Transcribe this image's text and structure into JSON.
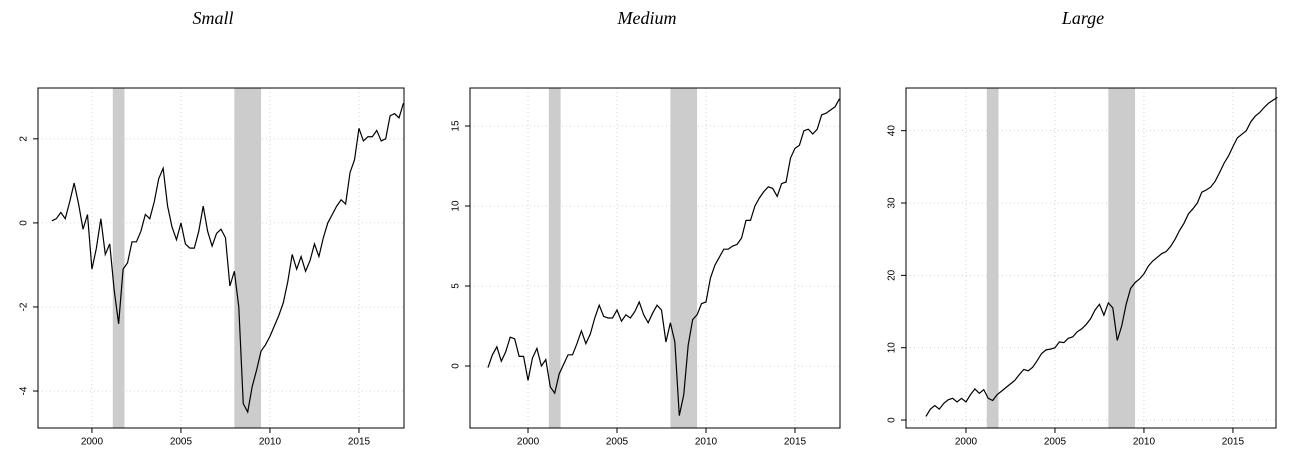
{
  "chart_data": [
    {
      "type": "line",
      "title": "Small",
      "color": "#000000",
      "shade_color": "#cccccc",
      "grid": true,
      "xlim": [
        1996.97,
        2017.53
      ],
      "xticks": [
        2000,
        2005,
        2010,
        2015
      ],
      "ylim": [
        -4.88,
        3.21
      ],
      "yticks": [
        -4,
        -2,
        0,
        2
      ],
      "shaded": [
        [
          2001.17,
          2001.83
        ],
        [
          2008.0,
          2009.5
        ]
      ],
      "x": [
        1997.75,
        1998,
        1998.25,
        1998.5,
        1998.75,
        1999,
        1999.25,
        1999.5,
        1999.75,
        2000,
        2000.25,
        2000.5,
        2000.75,
        2001,
        2001.25,
        2001.5,
        2001.75,
        2002,
        2002.25,
        2002.5,
        2002.75,
        2003,
        2003.25,
        2003.5,
        2003.75,
        2004,
        2004.25,
        2004.5,
        2004.75,
        2005,
        2005.25,
        2005.5,
        2005.75,
        2006,
        2006.25,
        2006.5,
        2006.75,
        2007,
        2007.25,
        2007.5,
        2007.75,
        2008,
        2008.25,
        2008.5,
        2008.75,
        2009,
        2009.25,
        2009.5,
        2009.75,
        2010,
        2010.25,
        2010.5,
        2010.75,
        2011,
        2011.25,
        2011.5,
        2011.75,
        2012,
        2012.25,
        2012.5,
        2012.75,
        2013,
        2013.25,
        2013.5,
        2013.75,
        2014,
        2014.25,
        2014.5,
        2014.75,
        2015,
        2015.25,
        2015.5,
        2015.75,
        2016,
        2016.25,
        2016.5,
        2016.75,
        2017,
        2017.25,
        2017.5
      ],
      "values": [
        0.05,
        0.1,
        0.25,
        0.1,
        0.5,
        0.95,
        0.45,
        -0.15,
        0.2,
        -1.1,
        -0.6,
        0.1,
        -0.75,
        -0.5,
        -1.6,
        -2.4,
        -1.1,
        -0.95,
        -0.45,
        -0.45,
        -0.2,
        0.2,
        0.1,
        0.5,
        1.05,
        1.3,
        0.4,
        -0.1,
        -0.4,
        0.0,
        -0.5,
        -0.6,
        -0.6,
        -0.2,
        0.4,
        -0.2,
        -0.55,
        -0.25,
        -0.15,
        -0.35,
        -1.5,
        -1.15,
        -2.0,
        -4.3,
        -4.5,
        -3.9,
        -3.5,
        -3.05,
        -2.9,
        -2.7,
        -2.45,
        -2.2,
        -1.9,
        -1.4,
        -0.75,
        -1.1,
        -0.8,
        -1.15,
        -0.9,
        -0.5,
        -0.8,
        -0.35,
        0.0,
        0.2,
        0.4,
        0.55,
        0.45,
        1.2,
        1.5,
        2.25,
        1.95,
        2.05,
        2.05,
        2.2,
        1.95,
        2.0,
        2.55,
        2.6,
        2.5,
        2.85
      ]
    },
    {
      "type": "line",
      "title": "Medium",
      "color": "#000000",
      "shade_color": "#cccccc",
      "grid": true,
      "xlim": [
        1996.74,
        2017.53
      ],
      "xticks": [
        2000,
        2005,
        2010,
        2015
      ],
      "ylim": [
        -3.875,
        17.375
      ],
      "yticks": [
        0,
        5,
        10,
        15
      ],
      "shaded": [
        [
          2001.17,
          2001.83
        ],
        [
          2008.0,
          2009.5
        ]
      ],
      "x": [
        1997.75,
        1998,
        1998.25,
        1998.5,
        1998.75,
        1999,
        1999.25,
        1999.5,
        1999.75,
        2000,
        2000.25,
        2000.5,
        2000.75,
        2001,
        2001.25,
        2001.5,
        2001.75,
        2002,
        2002.25,
        2002.5,
        2002.75,
        2003,
        2003.25,
        2003.5,
        2003.75,
        2004,
        2004.25,
        2004.5,
        2004.75,
        2005,
        2005.25,
        2005.5,
        2005.75,
        2006,
        2006.25,
        2006.5,
        2006.75,
        2007,
        2007.25,
        2007.5,
        2007.75,
        2008,
        2008.25,
        2008.5,
        2008.75,
        2009,
        2009.25,
        2009.5,
        2009.75,
        2010,
        2010.25,
        2010.5,
        2010.75,
        2011,
        2011.25,
        2011.5,
        2011.75,
        2012,
        2012.25,
        2012.5,
        2012.75,
        2013,
        2013.25,
        2013.5,
        2013.75,
        2014,
        2014.25,
        2014.5,
        2014.75,
        2015,
        2015.25,
        2015.5,
        2015.75,
        2016,
        2016.25,
        2016.5,
        2016.75,
        2017,
        2017.25,
        2017.5
      ],
      "values": [
        -0.1,
        0.7,
        1.2,
        0.3,
        0.9,
        1.8,
        1.7,
        0.6,
        0.6,
        -0.9,
        0.5,
        1.1,
        0.0,
        0.4,
        -1.3,
        -1.7,
        -0.5,
        0.1,
        0.7,
        0.7,
        1.4,
        2.2,
        1.4,
        2.0,
        3.0,
        3.8,
        3.1,
        3.0,
        3.0,
        3.5,
        2.8,
        3.2,
        3.0,
        3.4,
        4.0,
        3.2,
        2.7,
        3.3,
        3.8,
        3.5,
        1.5,
        2.7,
        1.5,
        -3.1,
        -1.8,
        1.3,
        2.9,
        3.2,
        3.9,
        4.0,
        5.5,
        6.3,
        6.8,
        7.3,
        7.3,
        7.5,
        7.6,
        8.0,
        9.1,
        9.1,
        10.0,
        10.5,
        10.9,
        11.2,
        11.1,
        10.6,
        11.4,
        11.5,
        13.0,
        13.6,
        13.8,
        14.7,
        14.8,
        14.5,
        14.8,
        15.7,
        15.8,
        16.0,
        16.2,
        16.7
      ]
    },
    {
      "type": "line",
      "title": "Large",
      "color": "#000000",
      "shade_color": "#cccccc",
      "grid": true,
      "xlim": [
        1996.63,
        2017.42
      ],
      "xticks": [
        2000,
        2005,
        2010,
        2015
      ],
      "ylim": [
        -1.1,
        45.9
      ],
      "yticks": [
        0,
        10,
        20,
        30,
        40
      ],
      "shaded": [
        [
          2001.17,
          2001.83
        ],
        [
          2008.0,
          2009.5
        ]
      ],
      "x": [
        1997.75,
        1998,
        1998.25,
        1998.5,
        1998.75,
        1999,
        1999.25,
        1999.5,
        1999.75,
        2000,
        2000.25,
        2000.5,
        2000.75,
        2001,
        2001.25,
        2001.5,
        2001.75,
        2002,
        2002.25,
        2002.5,
        2002.75,
        2003,
        2003.25,
        2003.5,
        2003.75,
        2004,
        2004.25,
        2004.5,
        2004.75,
        2005,
        2005.25,
        2005.5,
        2005.75,
        2006,
        2006.25,
        2006.5,
        2006.75,
        2007,
        2007.25,
        2007.5,
        2007.75,
        2008,
        2008.25,
        2008.5,
        2008.75,
        2009,
        2009.25,
        2009.5,
        2009.75,
        2010,
        2010.25,
        2010.5,
        2010.75,
        2011,
        2011.25,
        2011.5,
        2011.75,
        2012,
        2012.25,
        2012.5,
        2012.75,
        2013,
        2013.25,
        2013.5,
        2013.75,
        2014,
        2014.25,
        2014.5,
        2014.75,
        2015,
        2015.25,
        2015.5,
        2015.75,
        2016,
        2016.25,
        2016.5,
        2016.75,
        2017,
        2017.25,
        2017.5
      ],
      "values": [
        0.5,
        1.5,
        2.0,
        1.5,
        2.3,
        2.8,
        3.0,
        2.5,
        3.0,
        2.5,
        3.5,
        4.3,
        3.7,
        4.2,
        3.0,
        2.7,
        3.5,
        4.0,
        4.5,
        5.0,
        5.5,
        6.3,
        7.0,
        6.8,
        7.3,
        8.2,
        9.2,
        9.7,
        9.8,
        10.0,
        10.8,
        10.7,
        11.3,
        11.5,
        12.2,
        12.6,
        13.2,
        14.0,
        15.2,
        16.0,
        14.5,
        16.2,
        15.5,
        11.0,
        13.0,
        16.0,
        18.2,
        19.0,
        19.5,
        20.2,
        21.3,
        22.0,
        22.5,
        23.0,
        23.3,
        24.0,
        25.0,
        26.2,
        27.2,
        28.5,
        29.2,
        30.0,
        31.5,
        31.8,
        32.2,
        33.0,
        34.2,
        35.5,
        36.5,
        37.8,
        39.0,
        39.5,
        40.0,
        41.2,
        42.0,
        42.5,
        43.2,
        43.8,
        44.2,
        44.6
      ]
    }
  ]
}
